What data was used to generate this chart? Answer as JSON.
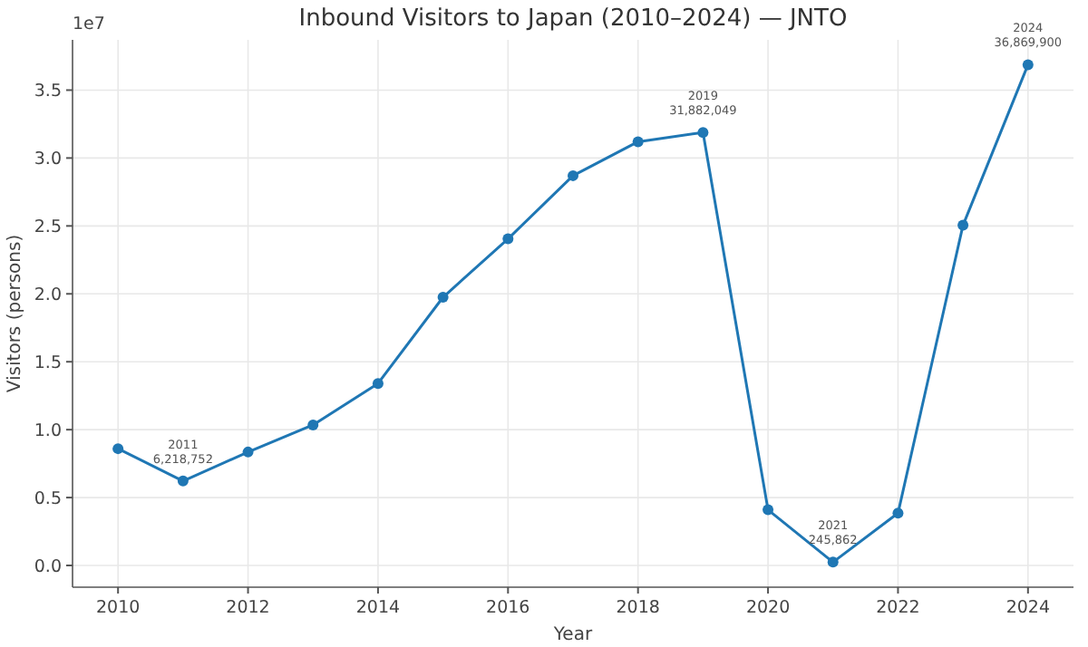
{
  "chart_data": {
    "type": "line",
    "title": "Inbound Visitors to Japan (2010–2024) — JNTO",
    "xlabel": "Year",
    "ylabel": "Visitors (persons)",
    "x": [
      2010,
      2011,
      2012,
      2013,
      2014,
      2015,
      2016,
      2017,
      2018,
      2019,
      2020,
      2021,
      2022,
      2023,
      2024
    ],
    "series": [
      {
        "color": "#1f77b4",
        "values": [
          0.86,
          0.6218752,
          0.835,
          1.035,
          1.34,
          1.975,
          2.405,
          2.87,
          3.12,
          3.1882049,
          0.41,
          0.0245862,
          0.385,
          2.505,
          3.68699
        ]
      }
    ],
    "xlim": [
      2009.3,
      2024.7
    ],
    "xticks": [
      2010,
      2012,
      2014,
      2016,
      2018,
      2020,
      2022,
      2024
    ],
    "ylim": [
      -0.16,
      3.87
    ],
    "yticks": [
      {
        "value": 0,
        "label": "0.0"
      },
      0.5,
      {
        "value": 1,
        "label": "1.0"
      },
      1.5,
      {
        "value": 2,
        "label": "2.0"
      },
      2.5,
      {
        "value": 3,
        "label": "3.0"
      },
      3.5
    ],
    "grid": true,
    "marker": "circle",
    "line_style": "solid",
    "annotations": [
      "1e7",
      {
        "text": "2011\n6,218,752",
        "x": 2011,
        "y": 0.6218752
      },
      {
        "text": "2019\n31,882,049",
        "x": 2019,
        "y": 3.1882049
      },
      {
        "text": "2021\n245,862",
        "x": 2021,
        "y": 0.0245862
      },
      {
        "text": "2024\n36,869,900",
        "x": 2024,
        "y": 3.68699
      }
    ]
  }
}
